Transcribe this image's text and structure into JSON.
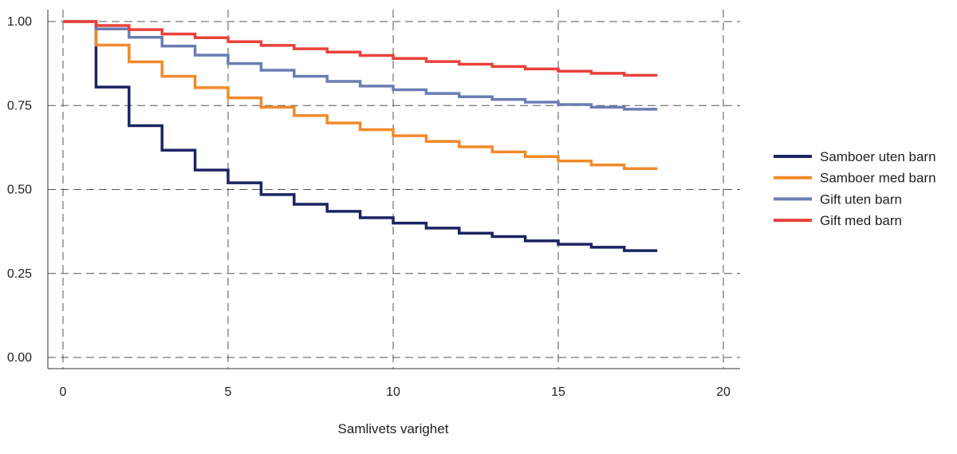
{
  "chart_data": {
    "type": "line",
    "step": true,
    "title": "",
    "xlabel": "Samlivets varighet",
    "ylabel": "",
    "xlim": [
      0,
      20
    ],
    "ylim": [
      0,
      1
    ],
    "x_ticks": [
      0,
      5,
      10,
      15,
      20
    ],
    "x_tick_labels": [
      "0",
      "5",
      "10",
      "15",
      "20"
    ],
    "y_ticks": [
      0,
      0.25,
      0.5,
      0.75,
      1
    ],
    "y_tick_labels": [
      "0.00",
      "0.25",
      "0.50",
      "0.75",
      "1.00"
    ],
    "grid": true,
    "legend_position": "right",
    "x": [
      0,
      1,
      2,
      3,
      4,
      5,
      6,
      7,
      8,
      9,
      10,
      11,
      12,
      13,
      14,
      15,
      16,
      17,
      18
    ],
    "series": [
      {
        "name": "Samboer uten barn",
        "color": "#1b2463",
        "values": [
          1.0,
          0.805,
          0.69,
          0.617,
          0.558,
          0.52,
          0.485,
          0.456,
          0.435,
          0.416,
          0.4,
          0.385,
          0.37,
          0.36,
          0.347,
          0.337,
          0.328,
          0.318,
          0.318
        ]
      },
      {
        "name": "Samboer med barn",
        "color": "#f28a2a",
        "values": [
          1.0,
          0.93,
          0.88,
          0.837,
          0.803,
          0.773,
          0.745,
          0.72,
          0.698,
          0.678,
          0.66,
          0.643,
          0.627,
          0.612,
          0.598,
          0.585,
          0.573,
          0.562,
          0.562
        ]
      },
      {
        "name": "Gift uten barn",
        "color": "#6b7db3",
        "values": [
          1.0,
          0.978,
          0.953,
          0.927,
          0.9,
          0.875,
          0.855,
          0.837,
          0.822,
          0.808,
          0.797,
          0.786,
          0.776,
          0.768,
          0.76,
          0.753,
          0.745,
          0.739,
          0.739
        ]
      },
      {
        "name": "Gift med barn",
        "color": "#e8423a",
        "values": [
          1.0,
          0.988,
          0.976,
          0.963,
          0.952,
          0.94,
          0.929,
          0.919,
          0.909,
          0.899,
          0.89,
          0.881,
          0.873,
          0.866,
          0.859,
          0.852,
          0.846,
          0.84,
          0.84
        ]
      }
    ]
  }
}
